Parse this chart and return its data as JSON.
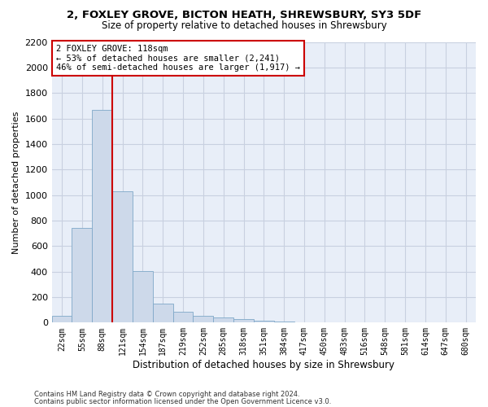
{
  "title1": "2, FOXLEY GROVE, BICTON HEATH, SHREWSBURY, SY3 5DF",
  "title2": "Size of property relative to detached houses in Shrewsbury",
  "xlabel": "Distribution of detached houses by size in Shrewsbury",
  "ylabel": "Number of detached properties",
  "bar_labels": [
    "22sqm",
    "55sqm",
    "88sqm",
    "121sqm",
    "154sqm",
    "187sqm",
    "219sqm",
    "252sqm",
    "285sqm",
    "318sqm",
    "351sqm",
    "384sqm",
    "417sqm",
    "450sqm",
    "483sqm",
    "516sqm",
    "548sqm",
    "581sqm",
    "614sqm",
    "647sqm",
    "680sqm"
  ],
  "bar_values": [
    55,
    740,
    1670,
    1030,
    405,
    150,
    85,
    50,
    40,
    28,
    15,
    10,
    0,
    0,
    0,
    0,
    0,
    0,
    0,
    0,
    0
  ],
  "bar_color": "#cdd9ea",
  "bar_edge_color": "#7fa8c8",
  "vline_color": "#cc0000",
  "annotation_text": "2 FOXLEY GROVE: 118sqm\n← 53% of detached houses are smaller (2,241)\n46% of semi-detached houses are larger (1,917) →",
  "annotation_box_color": "#ffffff",
  "annotation_box_edge": "#cc0000",
  "ylim": [
    0,
    2200
  ],
  "yticks": [
    0,
    200,
    400,
    600,
    800,
    1000,
    1200,
    1400,
    1600,
    1800,
    2000,
    2200
  ],
  "grid_color": "#c8d0e0",
  "bg_color": "#e8eef8",
  "footnote1": "Contains HM Land Registry data © Crown copyright and database right 2024.",
  "footnote2": "Contains public sector information licensed under the Open Government Licence v3.0."
}
